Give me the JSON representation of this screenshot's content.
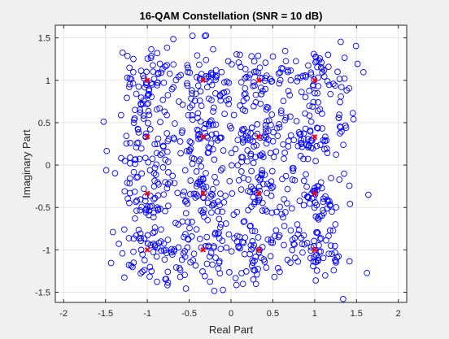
{
  "chart_data": {
    "type": "scatter",
    "title": "16-QAM Constellation (SNR = 10 dB)",
    "xlabel": "Real Part",
    "ylabel": "Imaginary Part",
    "xlim": [
      -2.1,
      2.1
    ],
    "ylim": [
      -1.62,
      1.65
    ],
    "xticks": [
      -2,
      -1.5,
      -1,
      -0.5,
      0,
      0.5,
      1,
      1.5,
      2
    ],
    "yticks": [
      -1.5,
      -1,
      -0.5,
      0,
      0.5,
      1,
      1.5
    ],
    "grid": true,
    "series": [
      {
        "marker": "circle",
        "color": "#0000ff",
        "noise_std": 0.2,
        "points_per_symbol": 62
      },
      {
        "marker": "x",
        "color": "#ff0000",
        "x": [
          -1,
          -1,
          -1,
          -1,
          -0.333,
          -0.333,
          -0.333,
          -0.333,
          0.333,
          0.333,
          0.333,
          0.333,
          1,
          1,
          1,
          1
        ],
        "y": [
          1,
          0.333,
          -0.333,
          -1,
          1,
          0.333,
          -0.333,
          -1,
          1,
          0.333,
          -0.333,
          -1,
          1,
          0.333,
          -0.333,
          -1
        ]
      }
    ]
  }
}
